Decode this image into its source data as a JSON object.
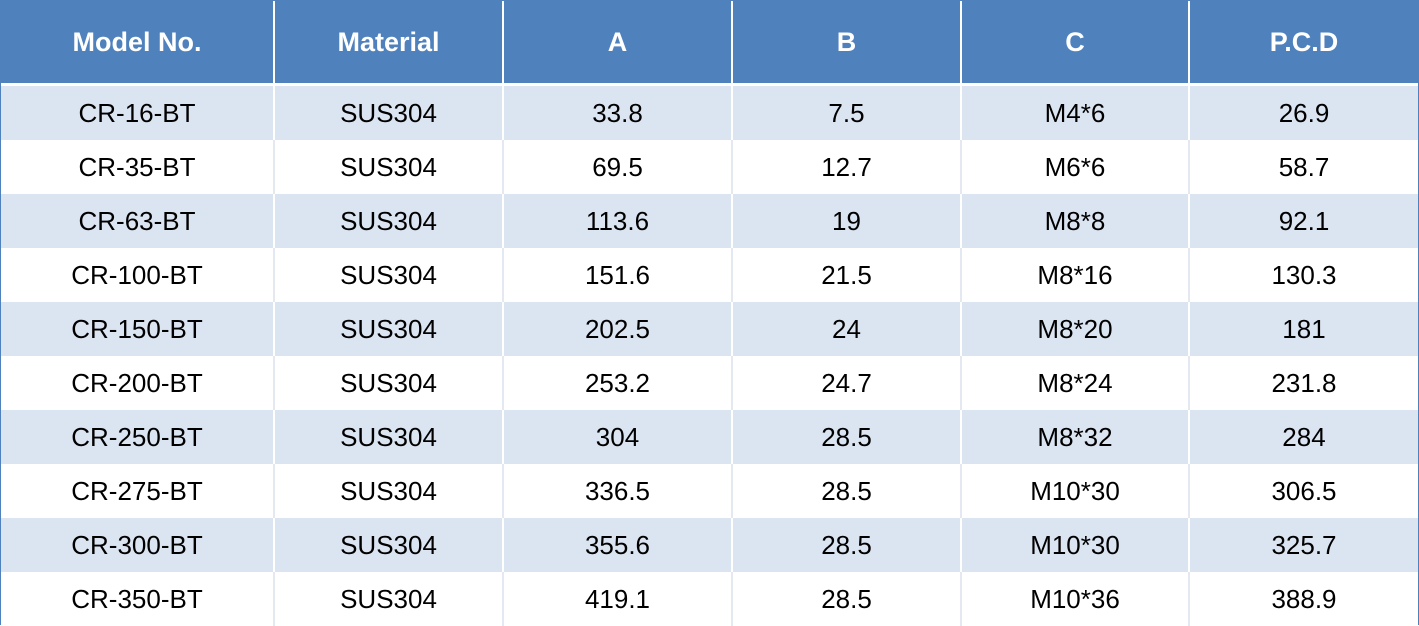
{
  "table": {
    "headers": [
      "Model No.",
      "Material",
      "A",
      "B",
      "C",
      "P.C.D"
    ],
    "rows": [
      [
        "CR-16-BT",
        "SUS304",
        "33.8",
        "7.5",
        "M4*6",
        "26.9"
      ],
      [
        "CR-35-BT",
        "SUS304",
        "69.5",
        "12.7",
        "M6*6",
        "58.7"
      ],
      [
        "CR-63-BT",
        "SUS304",
        "113.6",
        "19",
        "M8*8",
        "92.1"
      ],
      [
        "CR-100-BT",
        "SUS304",
        "151.6",
        "21.5",
        "M8*16",
        "130.3"
      ],
      [
        "CR-150-BT",
        "SUS304",
        "202.5",
        "24",
        "M8*20",
        "181"
      ],
      [
        "CR-200-BT",
        "SUS304",
        "253.2",
        "24.7",
        "M8*24",
        "231.8"
      ],
      [
        "CR-250-BT",
        "SUS304",
        "304",
        "28.5",
        "M8*32",
        "284"
      ],
      [
        "CR-275-BT",
        "SUS304",
        "336.5",
        "28.5",
        "M10*30",
        "306.5"
      ],
      [
        "CR-300-BT",
        "SUS304",
        "355.6",
        "28.5",
        "M10*30",
        "325.7"
      ],
      [
        "CR-350-BT",
        "SUS304",
        "419.1",
        "28.5",
        "M10*36",
        "388.9"
      ]
    ]
  },
  "colors": {
    "header_bg": "#4f81bd",
    "header_text": "#ffffff",
    "band_row_bg": "#dbe4f1",
    "plain_row_bg": "#ffffff"
  }
}
